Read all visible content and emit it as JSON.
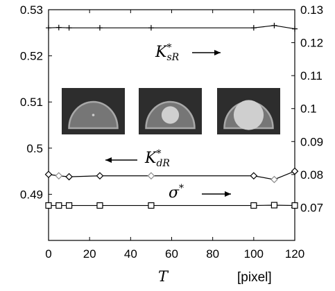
{
  "chart_data": {
    "type": "line",
    "title": "",
    "xlabel": "T",
    "xunit": "[pixel]",
    "xlim": [
      0,
      120
    ],
    "ylim_left": [
      0.48,
      0.53
    ],
    "ylim_right": [
      0.06,
      0.13
    ],
    "grid": false,
    "x_ticks": [
      "0",
      "20",
      "40",
      "60",
      "80",
      "100",
      "120"
    ],
    "y_left_ticks": [
      "0.49",
      "0.5",
      "0.51",
      "0.52",
      "0.53"
    ],
    "y_right_ticks": [
      "0.07",
      "0.08",
      "0.09",
      "0.1",
      "0.11",
      "0.12",
      "0.13"
    ],
    "x": [
      0,
      5,
      10,
      25,
      50,
      100,
      110,
      120
    ],
    "series": [
      {
        "name": "K*_sR",
        "label_main": "K",
        "label_sup": "*",
        "label_sub": "sR",
        "axis": "right",
        "marker": "plus",
        "values": [
          0.1245,
          0.1246,
          0.1245,
          0.1245,
          0.1245,
          0.1245,
          0.1252,
          0.1242
        ]
      },
      {
        "name": "K*_dR",
        "label_main": "K",
        "label_sup": "*",
        "label_sub": "dR",
        "axis": "left",
        "marker": "diamond",
        "values": [
          0.4943,
          0.494,
          0.4938,
          0.494,
          0.494,
          0.494,
          0.4932,
          0.495
        ]
      },
      {
        "name": "σ*",
        "label_main": "σ",
        "label_sup": "*",
        "label_sub": "",
        "axis": "right",
        "marker": "square",
        "values": [
          0.0706,
          0.0706,
          0.0706,
          0.0706,
          0.0706,
          0.0706,
          0.0707,
          0.0706
        ]
      }
    ],
    "insets": [
      {
        "name": "small-inclusion-phantom",
        "circle_radius_fraction": 0.05
      },
      {
        "name": "medium-inclusion-phantom",
        "circle_radius_fraction": 0.42
      },
      {
        "name": "large-inclusion-phantom",
        "circle_radius_fraction": 0.72
      }
    ]
  }
}
